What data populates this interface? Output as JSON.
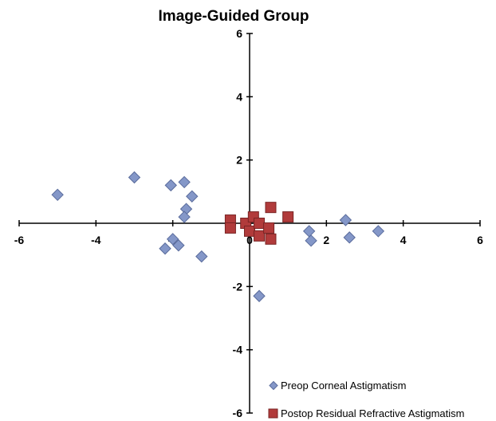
{
  "chart_data": {
    "type": "scatter",
    "title": "Image-Guided Group",
    "xlabel": "",
    "ylabel": "",
    "xlim": [
      -6,
      6
    ],
    "ylim": [
      -6,
      6
    ],
    "xticks": [
      "-6",
      "-4",
      "-2",
      "0",
      "2",
      "4",
      "6"
    ],
    "yticks": [
      "-6",
      "-4",
      "-2",
      "0",
      "2",
      "4",
      "6"
    ],
    "xtick_values": [
      -6,
      -4,
      -2,
      0,
      2,
      4,
      6
    ],
    "ytick_values": [
      -6,
      -4,
      -2,
      0,
      2,
      4,
      6
    ],
    "grid": false,
    "legend_position": "bottom-right",
    "series": [
      {
        "name": "Preop Corneal Astigmatism",
        "marker": "diamond",
        "color": "#8497c8",
        "edge_color": "#5a6c9c",
        "points": [
          [
            -5.0,
            0.9
          ],
          [
            -3.0,
            1.45
          ],
          [
            -2.05,
            1.2
          ],
          [
            -1.7,
            1.3
          ],
          [
            -1.5,
            0.85
          ],
          [
            -1.65,
            0.45
          ],
          [
            -1.7,
            0.2
          ],
          [
            -2.2,
            -0.8
          ],
          [
            -2.0,
            -0.5
          ],
          [
            -1.85,
            -0.7
          ],
          [
            -1.25,
            -1.05
          ],
          [
            0.25,
            -2.3
          ],
          [
            1.55,
            -0.25
          ],
          [
            1.6,
            -0.55
          ],
          [
            2.5,
            0.1
          ],
          [
            2.6,
            -0.45
          ],
          [
            3.35,
            -0.25
          ]
        ]
      },
      {
        "name": "Postop Residual Refractive Astigmatism",
        "marker": "square",
        "color": "#b13b3b",
        "edge_color": "#7a2424",
        "points": [
          [
            -0.5,
            0.1
          ],
          [
            -0.5,
            -0.15
          ],
          [
            -0.1,
            0.0
          ],
          [
            0.0,
            -0.25
          ],
          [
            0.1,
            0.2
          ],
          [
            0.25,
            0.0
          ],
          [
            0.25,
            -0.4
          ],
          [
            0.5,
            -0.15
          ],
          [
            0.55,
            0.5
          ],
          [
            0.55,
            -0.5
          ],
          [
            1.0,
            0.2
          ]
        ]
      }
    ]
  }
}
